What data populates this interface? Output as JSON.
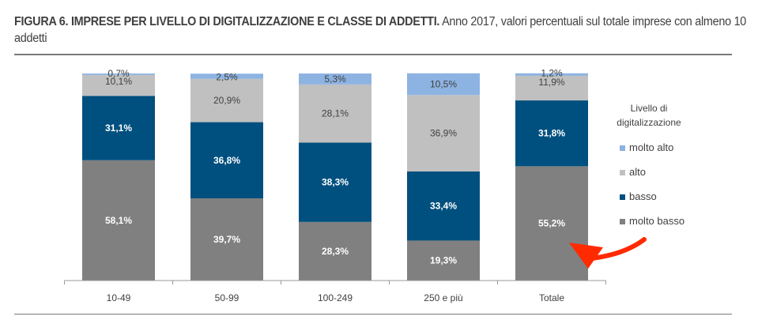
{
  "title_bold": "FIGURA 6. IMPRESE PER LIVELLO DI DIGITALIZZAZIONE E CLASSE DI ADDETTI.",
  "title_rest": " Anno 2017, valori percentuali sul totale imprese con almeno 10 addetti",
  "chart_data": {
    "type": "bar",
    "stacked": true,
    "categories": [
      "10-49",
      "50-99",
      "100-249",
      "250 e più",
      "Totale"
    ],
    "series": [
      {
        "name": "molto basso",
        "color": "#808080",
        "values": [
          58.1,
          39.7,
          28.3,
          19.3,
          55.2
        ],
        "labels": [
          "58,1%",
          "39,7%",
          "28,3%",
          "19,3%",
          "55,2%"
        ]
      },
      {
        "name": "basso",
        "color": "#00507f",
        "values": [
          31.1,
          36.8,
          38.3,
          33.4,
          31.8
        ],
        "labels": [
          "31,1%",
          "36,8%",
          "38,3%",
          "33,4%",
          "31,8%"
        ]
      },
      {
        "name": "alto",
        "color": "#c0c0c0",
        "values": [
          10.1,
          20.9,
          28.1,
          36.9,
          11.9
        ],
        "labels": [
          "10,1%",
          "20,9%",
          "28,1%",
          "36,9%",
          "11,9%"
        ]
      },
      {
        "name": "molto alto",
        "color": "#8db3e2",
        "values": [
          0.7,
          2.5,
          5.3,
          10.5,
          1.2
        ],
        "labels": [
          "0,7%",
          "2,5%",
          "5,3%",
          "10,5%",
          "1,2%"
        ]
      }
    ],
    "legend_title": "Livello di digitalizzazione",
    "legend_title_lines": [
      "Livello di",
      "digitalizzazione"
    ],
    "legend_placement": "right",
    "ylim": [
      0,
      100
    ],
    "annotation": {
      "type": "arrow",
      "color": "#ff2a00",
      "points_to": "Totale - molto basso"
    }
  }
}
